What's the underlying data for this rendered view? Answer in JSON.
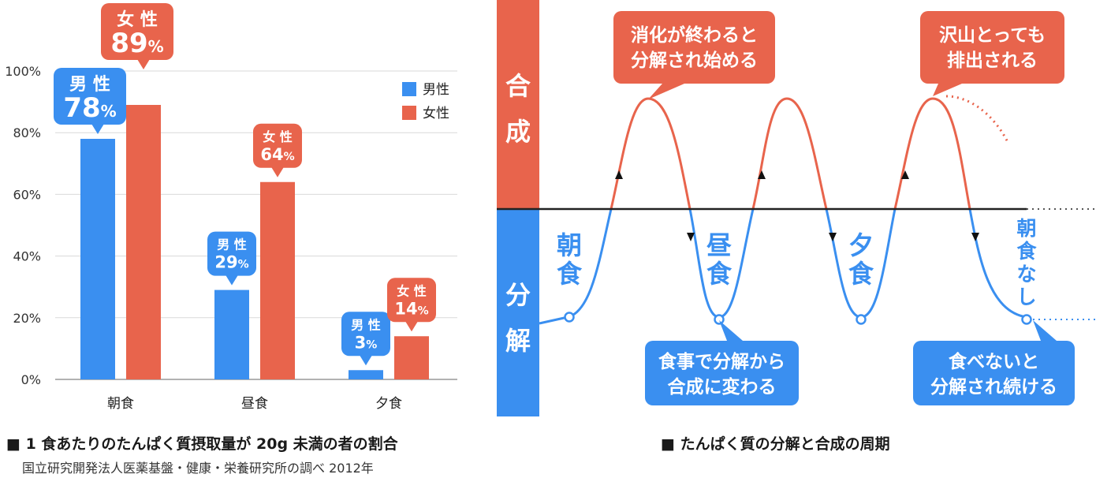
{
  "chart_data": {
    "type": "bar",
    "categories": [
      "朝食",
      "昼食",
      "夕食"
    ],
    "series": [
      {
        "name": "男性",
        "values": [
          78,
          29,
          3
        ],
        "color": "#3a8ff0"
      },
      {
        "name": "女性",
        "values": [
          89,
          64,
          14
        ],
        "color": "#e8644c"
      }
    ],
    "ylim": [
      0,
      100
    ],
    "yticks": [
      0,
      20,
      40,
      60,
      80,
      100
    ],
    "ytick_labels": [
      "0%",
      "20%",
      "40%",
      "60%",
      "80%",
      "100%"
    ],
    "grid": true,
    "legend_position": "top-right",
    "callouts": [
      {
        "series": 0,
        "category": 0,
        "label": "男 性",
        "value": "78",
        "unit": "%"
      },
      {
        "series": 1,
        "category": 0,
        "label": "女 性",
        "value": "89",
        "unit": "%"
      },
      {
        "series": 0,
        "category": 1,
        "label": "男 性",
        "value": "29",
        "unit": "%"
      },
      {
        "series": 1,
        "category": 1,
        "label": "女 性",
        "value": "64",
        "unit": "%"
      },
      {
        "series": 0,
        "category": 2,
        "label": "男 性",
        "value": "3",
        "unit": "%"
      },
      {
        "series": 1,
        "category": 2,
        "label": "女 性",
        "value": "14",
        "unit": "%"
      }
    ]
  },
  "left_caption": "■ 1 食あたりのたんぱく質摂取量が 20g 未満の者の割合",
  "left_source": "国立研究開発法人医薬基盤・健康・栄養研究所の調べ 2012年",
  "right_caption": "■ たんぱく質の分解と合成の周期",
  "diagram": {
    "side_top": [
      "合",
      "成"
    ],
    "side_bottom": [
      "分",
      "解"
    ],
    "meals": [
      {
        "label": [
          "朝",
          "食"
        ]
      },
      {
        "label": [
          "昼",
          "食"
        ]
      },
      {
        "label": [
          "夕",
          "食"
        ]
      },
      {
        "label": [
          "朝",
          "食",
          "な",
          "し"
        ]
      }
    ],
    "callouts": [
      {
        "lines": [
          "消化が終わると",
          "分解され始める"
        ],
        "color": "#e8644c"
      },
      {
        "lines": [
          "沢山とっても",
          "排出される"
        ],
        "color": "#e8644c"
      },
      {
        "lines": [
          "食事で分解から",
          "合成に変わる"
        ],
        "color": "#3a8ff0"
      },
      {
        "lines": [
          "食べないと",
          "分解され続ける"
        ],
        "color": "#3a8ff0"
      }
    ],
    "colors": {
      "synthesis": "#e8644c",
      "breakdown": "#3a8ff0"
    }
  }
}
